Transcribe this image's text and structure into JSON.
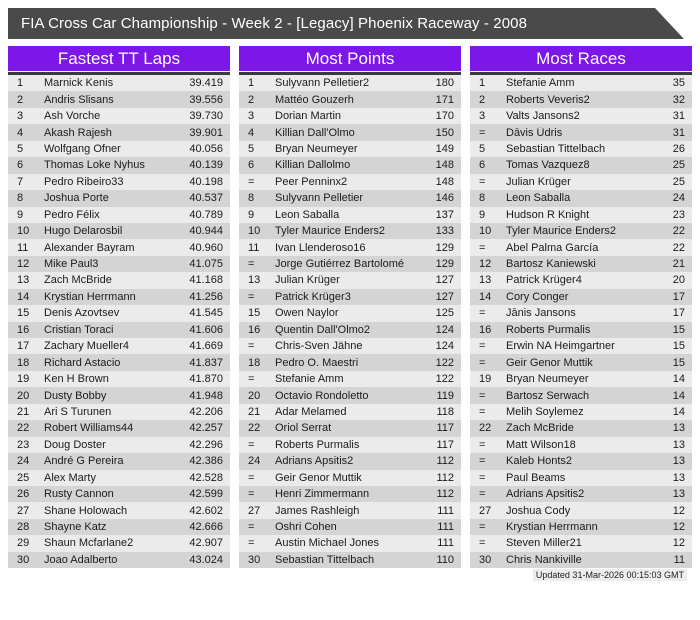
{
  "title_bar": {
    "title": "FIA Cross Car Championship - Week 2 - [Legacy] Phoenix Raceway - 2008"
  },
  "colors": {
    "title_bar_bg": "#4a4a4a",
    "accent_purple": "#7c16e9",
    "row_odd": "#ebebeb",
    "row_even": "#d4d4d4",
    "body_border": "#3a3a3a"
  },
  "footer": {
    "updated": "Updated 31-Mar-2026 00:15:03 GMT"
  },
  "tables": [
    {
      "title": "Fastest TT Laps",
      "rows": [
        {
          "rank": "1",
          "name": "Marnick Kenis",
          "value": "39.419"
        },
        {
          "rank": "2",
          "name": "Andris Slisans",
          "value": "39.556"
        },
        {
          "rank": "3",
          "name": "Ash Vorche",
          "value": "39.730"
        },
        {
          "rank": "4",
          "name": "Akash Rajesh",
          "value": "39.901"
        },
        {
          "rank": "5",
          "name": "Wolfgang Ofner",
          "value": "40.056"
        },
        {
          "rank": "6",
          "name": "Thomas Loke Nyhus",
          "value": "40.139"
        },
        {
          "rank": "7",
          "name": "Pedro Ribeiro33",
          "value": "40.198"
        },
        {
          "rank": "8",
          "name": "Joshua Porte",
          "value": "40.537"
        },
        {
          "rank": "9",
          "name": "Pedro Félix",
          "value": "40.789"
        },
        {
          "rank": "10",
          "name": "Hugo Delarosbil",
          "value": "40.944"
        },
        {
          "rank": "11",
          "name": "Alexander Bayram",
          "value": "40.960"
        },
        {
          "rank": "12",
          "name": "Mike Paul3",
          "value": "41.075"
        },
        {
          "rank": "13",
          "name": "Zach McBride",
          "value": "41.168"
        },
        {
          "rank": "14",
          "name": "Krystian Herrmann",
          "value": "41.256"
        },
        {
          "rank": "15",
          "name": "Denis Azovtsev",
          "value": "41.545"
        },
        {
          "rank": "16",
          "name": "Cristian Toraci",
          "value": "41.606"
        },
        {
          "rank": "17",
          "name": "Zachary Mueller4",
          "value": "41.669"
        },
        {
          "rank": "18",
          "name": "Richard Astacio",
          "value": "41.837"
        },
        {
          "rank": "19",
          "name": "Ken H Brown",
          "value": "41.870"
        },
        {
          "rank": "20",
          "name": "Dusty Bobby",
          "value": "41.948"
        },
        {
          "rank": "21",
          "name": "Ari S Turunen",
          "value": "42.206"
        },
        {
          "rank": "22",
          "name": "Robert Williams44",
          "value": "42.257"
        },
        {
          "rank": "23",
          "name": "Doug Doster",
          "value": "42.296"
        },
        {
          "rank": "24",
          "name": "André G Pereira",
          "value": "42.386"
        },
        {
          "rank": "25",
          "name": "Alex Marty",
          "value": "42.528"
        },
        {
          "rank": "26",
          "name": "Rusty Cannon",
          "value": "42.599"
        },
        {
          "rank": "27",
          "name": "Shane Holowach",
          "value": "42.602"
        },
        {
          "rank": "28",
          "name": "Shayne Katz",
          "value": "42.666"
        },
        {
          "rank": "29",
          "name": "Shaun Mcfarlane2",
          "value": "42.907"
        },
        {
          "rank": "30",
          "name": "Joao Adalberto",
          "value": "43.024"
        }
      ]
    },
    {
      "title": "Most Points",
      "rows": [
        {
          "rank": "1",
          "name": "Sulyvann Pelletier2",
          "value": "180"
        },
        {
          "rank": "2",
          "name": "Mattéo Gouzerh",
          "value": "171"
        },
        {
          "rank": "3",
          "name": "Dorian Martin",
          "value": "170"
        },
        {
          "rank": "4",
          "name": "Killian Dall'Olmo",
          "value": "150"
        },
        {
          "rank": "5",
          "name": "Bryan Neumeyer",
          "value": "149"
        },
        {
          "rank": "6",
          "name": "Killian Dallolmo",
          "value": "148"
        },
        {
          "rank": "=",
          "name": "Peer Penninx2",
          "value": "148"
        },
        {
          "rank": "8",
          "name": "Sulyvann Pelletier",
          "value": "146"
        },
        {
          "rank": "9",
          "name": "Leon Saballa",
          "value": "137"
        },
        {
          "rank": "10",
          "name": "Tyler Maurice Enders2",
          "value": "133"
        },
        {
          "rank": "11",
          "name": "Ivan Llenderoso16",
          "value": "129"
        },
        {
          "rank": "=",
          "name": "Jorge Gutiérrez Bartolomé",
          "value": "129"
        },
        {
          "rank": "13",
          "name": "Julian Krüger",
          "value": "127"
        },
        {
          "rank": "=",
          "name": "Patrick Krüger3",
          "value": "127"
        },
        {
          "rank": "15",
          "name": "Owen Naylor",
          "value": "125"
        },
        {
          "rank": "16",
          "name": "Quentin Dall'Olmo2",
          "value": "124"
        },
        {
          "rank": "=",
          "name": "Chris-Sven Jähne",
          "value": "124"
        },
        {
          "rank": "18",
          "name": "Pedro O. Maestri",
          "value": "122"
        },
        {
          "rank": "=",
          "name": "Stefanie Amm",
          "value": "122"
        },
        {
          "rank": "20",
          "name": "Octavio Rondoletto",
          "value": "119"
        },
        {
          "rank": "21",
          "name": "Adar Melamed",
          "value": "118"
        },
        {
          "rank": "22",
          "name": "Oriol Serrat",
          "value": "117"
        },
        {
          "rank": "=",
          "name": "Roberts Purmalis",
          "value": "117"
        },
        {
          "rank": "24",
          "name": "Adrians Apsitis2",
          "value": "112"
        },
        {
          "rank": "=",
          "name": "Geir Genor Muttik",
          "value": "112"
        },
        {
          "rank": "=",
          "name": "Henri Zimmermann",
          "value": "112"
        },
        {
          "rank": "27",
          "name": "James Rashleigh",
          "value": "111"
        },
        {
          "rank": "=",
          "name": "Oshri Cohen",
          "value": "111"
        },
        {
          "rank": "=",
          "name": "Austin Michael Jones",
          "value": "111"
        },
        {
          "rank": "30",
          "name": "Sebastian Tittelbach",
          "value": "110"
        }
      ]
    },
    {
      "title": "Most Races",
      "rows": [
        {
          "rank": "1",
          "name": "Stefanie Amm",
          "value": "35"
        },
        {
          "rank": "2",
          "name": "Roberts Veveris2",
          "value": "32"
        },
        {
          "rank": "3",
          "name": "Valts Jansons2",
          "value": "31"
        },
        {
          "rank": "=",
          "name": "Dāvis Ūdris",
          "value": "31"
        },
        {
          "rank": "5",
          "name": "Sebastian Tittelbach",
          "value": "26"
        },
        {
          "rank": "6",
          "name": "Tomas Vazquez8",
          "value": "25"
        },
        {
          "rank": "=",
          "name": "Julian Krüger",
          "value": "25"
        },
        {
          "rank": "8",
          "name": "Leon Saballa",
          "value": "24"
        },
        {
          "rank": "9",
          "name": "Hudson R Knight",
          "value": "23"
        },
        {
          "rank": "10",
          "name": "Tyler Maurice Enders2",
          "value": "22"
        },
        {
          "rank": "=",
          "name": "Abel Palma García",
          "value": "22"
        },
        {
          "rank": "12",
          "name": "Bartosz Kaniewski",
          "value": "21"
        },
        {
          "rank": "13",
          "name": "Patrick Krüger4",
          "value": "20"
        },
        {
          "rank": "14",
          "name": "Cory Conger",
          "value": "17"
        },
        {
          "rank": "=",
          "name": "Jānis Jansons",
          "value": "17"
        },
        {
          "rank": "16",
          "name": "Roberts Purmalis",
          "value": "15"
        },
        {
          "rank": "=",
          "name": "Erwin NA Heimgartner",
          "value": "15"
        },
        {
          "rank": "=",
          "name": "Geir Genor Muttik",
          "value": "15"
        },
        {
          "rank": "19",
          "name": "Bryan Neumeyer",
          "value": "14"
        },
        {
          "rank": "=",
          "name": "Bartosz Serwach",
          "value": "14"
        },
        {
          "rank": "=",
          "name": "Melih Soylemez",
          "value": "14"
        },
        {
          "rank": "22",
          "name": "Zach McBride",
          "value": "13"
        },
        {
          "rank": "=",
          "name": "Matt Wilson18",
          "value": "13"
        },
        {
          "rank": "=",
          "name": "Kaleb Honts2",
          "value": "13"
        },
        {
          "rank": "=",
          "name": "Paul Beams",
          "value": "13"
        },
        {
          "rank": "=",
          "name": "Adrians Apsitis2",
          "value": "13"
        },
        {
          "rank": "27",
          "name": "Joshua Cody",
          "value": "12"
        },
        {
          "rank": "=",
          "name": "Krystian Herrmann",
          "value": "12"
        },
        {
          "rank": "=",
          "name": "Steven Miller21",
          "value": "12"
        },
        {
          "rank": "30",
          "name": "Chris Nankiville",
          "value": "11"
        }
      ]
    }
  ]
}
